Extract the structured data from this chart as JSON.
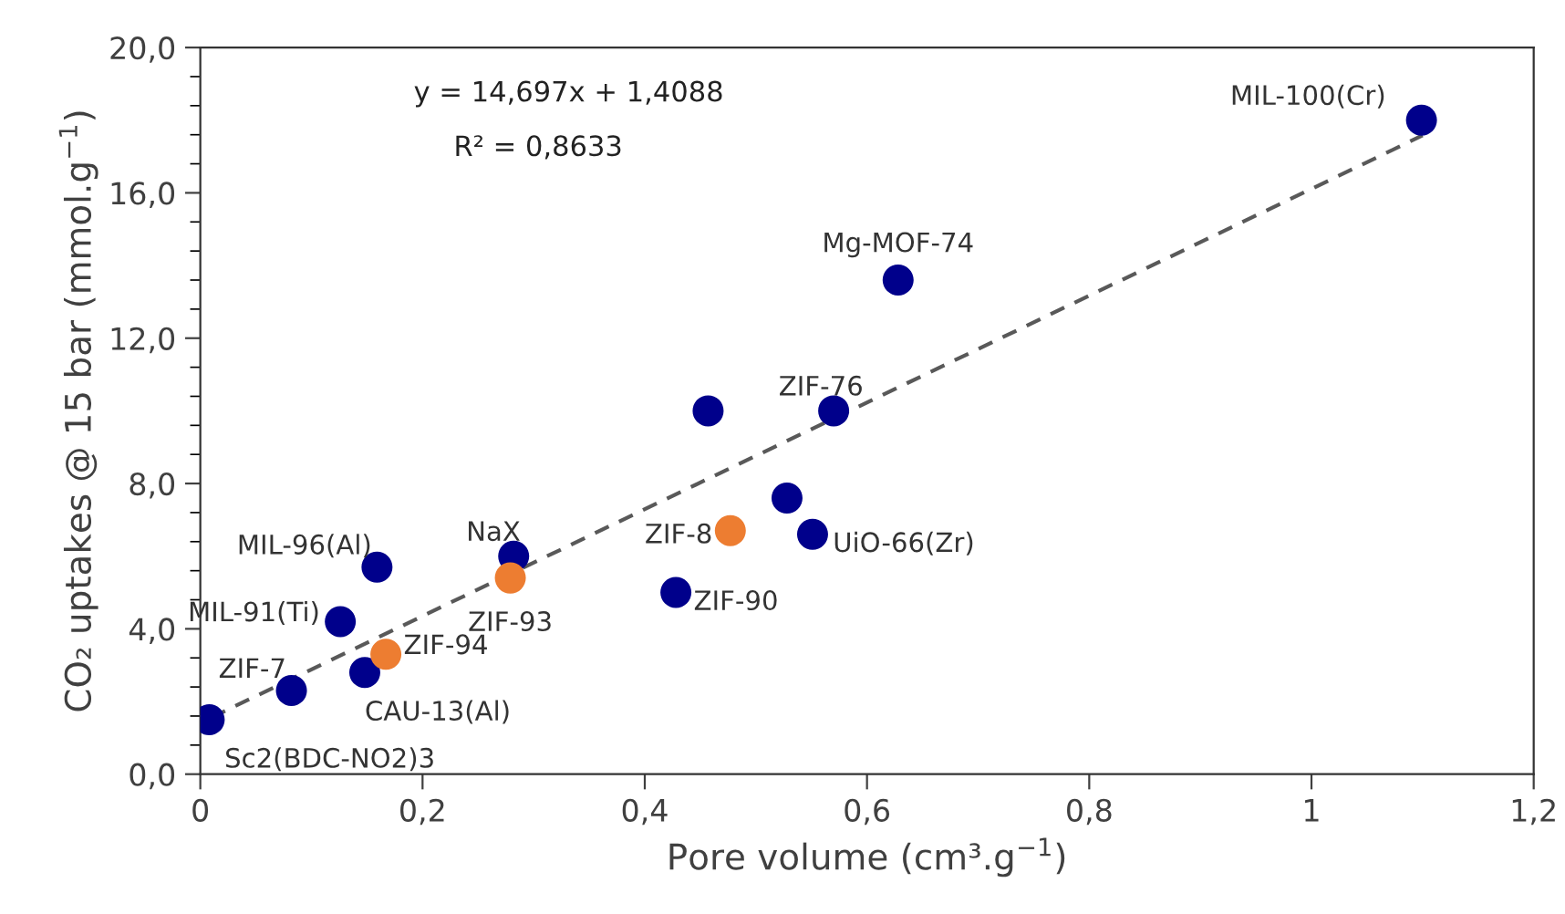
{
  "chart_data": {
    "type": "scatter",
    "xlabel": "Pore volume (cm³.g$^{−1}$)",
    "ylabel": "CO₂ uptakes @ 15 bar (mmol.g$^{−1}$)",
    "xlim": [
      0,
      1.2
    ],
    "ylim": [
      0,
      20
    ],
    "xticks": [
      0,
      {
        "value": 0.2,
        "label": "0,2"
      },
      {
        "value": 0.4,
        "label": "0,4"
      },
      {
        "value": 0.6,
        "label": "0,6"
      },
      {
        "value": 0.8,
        "label": "0,8"
      },
      1,
      {
        "value": 1.2,
        "label": "1,2"
      }
    ],
    "yticks": [
      {
        "value": 0,
        "label": "0,0"
      },
      {
        "value": 4,
        "label": "4,0"
      },
      {
        "value": 8,
        "label": "8,0"
      },
      {
        "value": 12,
        "label": "12,0"
      },
      {
        "value": 16,
        "label": "16,0"
      },
      {
        "value": 20,
        "label": "20,0"
      }
    ],
    "grid": false,
    "legend": false,
    "series": [
      {
        "marker": "circle",
        "color": "#00008b",
        "x": [
          0.008,
          0.082,
          0.126,
          0.148,
          0.159,
          0.282,
          0.428,
          0.457,
          0.528,
          0.551,
          0.57,
          0.628,
          1.099
        ],
        "values": [
          1.5,
          2.3,
          4.2,
          2.8,
          5.7,
          6.0,
          5.0,
          10.0,
          7.6,
          6.6,
          10.0,
          13.6,
          18.0
        ]
      },
      {
        "marker": "circle",
        "color": "#ed7d31",
        "x": [
          0.167,
          0.279,
          0.477
        ],
        "values": [
          3.3,
          5.4,
          6.7
        ]
      },
      {
        "type": "line",
        "color": "#595959",
        "line_style": "dashed",
        "x": [
          0.01,
          1.1
        ],
        "values": [
          1.56,
          17.58
        ]
      }
    ],
    "annotations": [
      "y = 14,697x + 1,4088",
      "R² = 0,8633",
      {
        "text": "Sc2(BDC-NO2)3",
        "x": 0.008,
        "y": 1.5
      },
      {
        "text": "ZIF-7",
        "x": 0.082,
        "y": 2.3
      },
      {
        "text": "MIL-91(Ti)",
        "x": 0.126,
        "y": 4.2
      },
      {
        "text": "CAU-13(Al)",
        "x": 0.148,
        "y": 2.8
      },
      {
        "text": "MIL-96(Al)",
        "x": 0.159,
        "y": 5.7
      },
      {
        "text": "ZIF-94",
        "x": 0.167,
        "y": 3.3
      },
      {
        "text": "NaX",
        "x": 0.282,
        "y": 6.0
      },
      {
        "text": "ZIF-93",
        "x": 0.279,
        "y": 5.4
      },
      {
        "text": "ZIF-90",
        "x": 0.428,
        "y": 5.0
      },
      {
        "text": "ZIF-8",
        "x": 0.477,
        "y": 6.7
      },
      {
        "text": "UiO-66(Zr)",
        "x": 0.551,
        "y": 6.6
      },
      {
        "text": "ZIF-76",
        "x": 0.57,
        "y": 10.0
      },
      {
        "text": "Mg-MOF-74",
        "x": 0.628,
        "y": 13.6
      },
      {
        "text": "MIL-100(Cr)",
        "x": 1.099,
        "y": 18.0
      }
    ]
  }
}
